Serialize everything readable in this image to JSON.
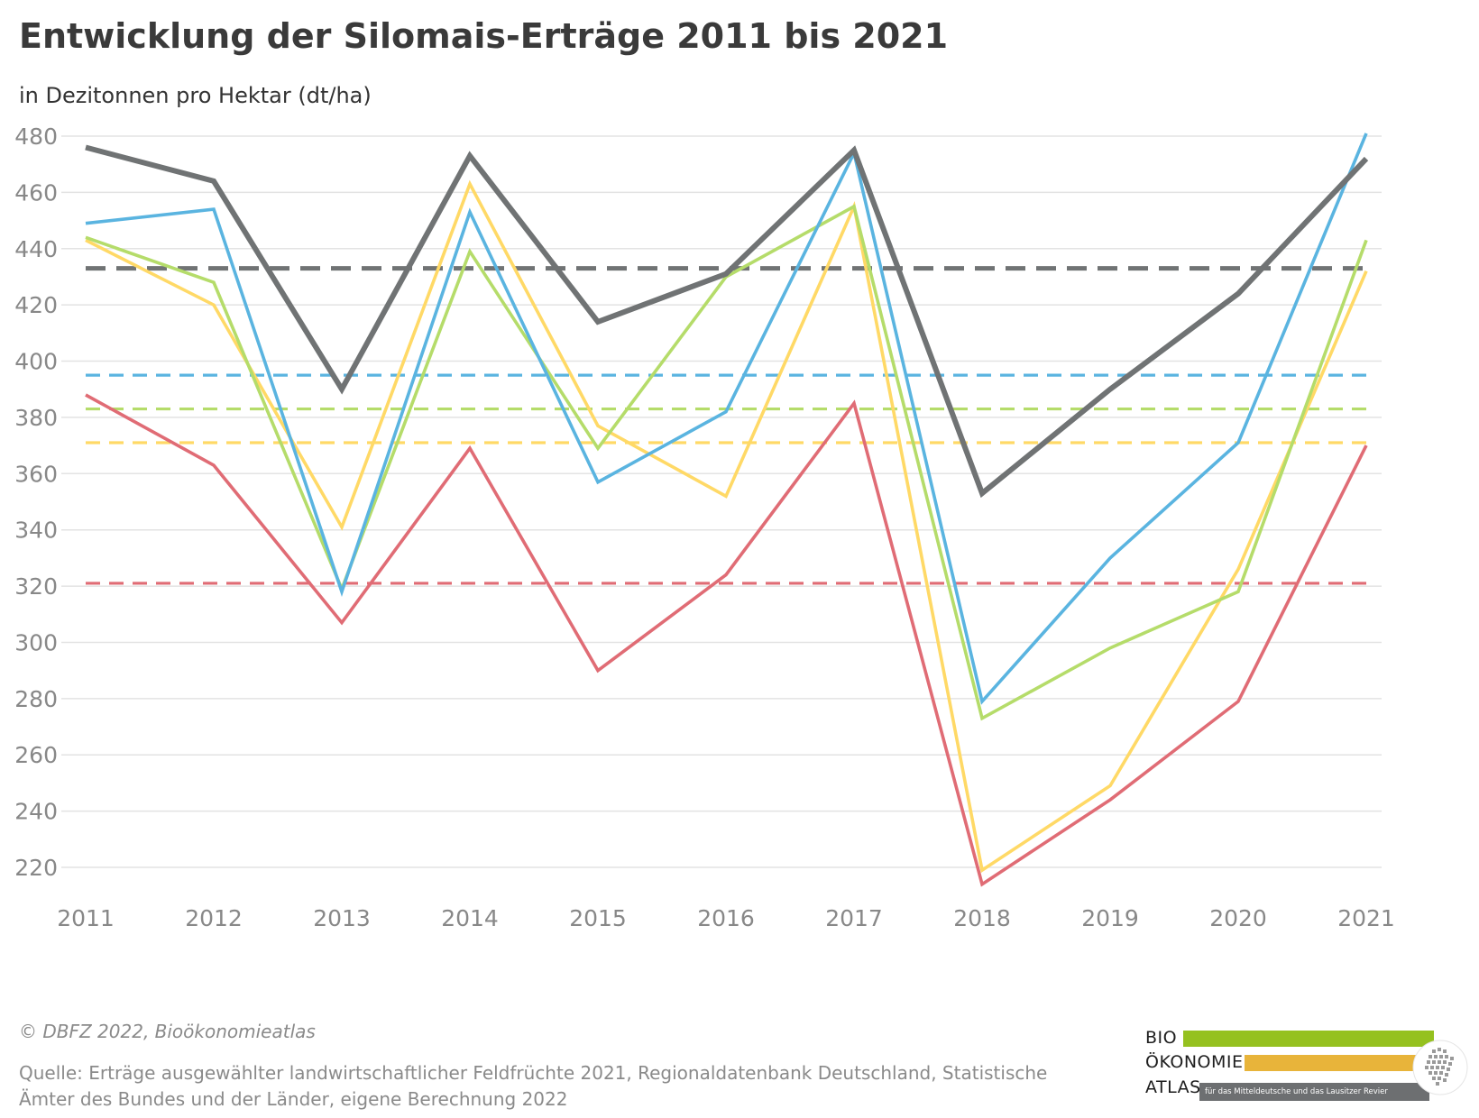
{
  "header": {
    "title": "Entwicklung der Silomais-Erträge 2011 bis 2021",
    "subtitle": "in Dezitonnen pro Hektar (dt/ha)"
  },
  "footer": {
    "copyright": "© DBFZ 2022, Bioökonomieatlas",
    "source": "Quelle: Erträge ausgewählter landwirtschaftlicher Feldfrüchte 2021, Regionaldatenbank Deutschland, Statistische Ämter des Bundes und der Länder, eigene Berechnung 2022"
  },
  "logo": {
    "line1": "BIO",
    "line2": "ÖKONOMIE",
    "line3": "ATLAS",
    "tagline": "für das Mitteldeutsche und das Lausitzer Revier",
    "colors": {
      "bio": "#95c11f",
      "oekonomie": "#e8b43a",
      "atlas": "#6d6f71"
    }
  },
  "chart_data": {
    "type": "line",
    "title": "Entwicklung der Silomais-Erträge 2011 bis 2021",
    "ylabel": "in Dezitonnen pro Hektar (dt/ha)",
    "x": [
      "2011",
      "2012",
      "2013",
      "2014",
      "2015",
      "2016",
      "2017",
      "2018",
      "2019",
      "2020",
      "2021"
    ],
    "ylim": [
      210,
      485
    ],
    "yticks": [
      220,
      240,
      260,
      280,
      300,
      320,
      340,
      360,
      380,
      400,
      420,
      440,
      460,
      480
    ],
    "grid": true,
    "legend": "none",
    "series": [
      {
        "color": "#e06c75",
        "values": [
          388,
          363,
          307,
          369,
          290,
          324,
          385,
          214,
          244,
          279,
          370
        ],
        "mean": 321
      },
      {
        "color": "#ffd966",
        "values": [
          443,
          420,
          341,
          463,
          377,
          352,
          455,
          219,
          249,
          326,
          432
        ],
        "mean": 371
      },
      {
        "color": "#b5dc6a",
        "values": [
          444,
          428,
          319,
          439,
          369,
          430,
          455,
          273,
          298,
          318,
          443
        ],
        "mean": 383
      },
      {
        "color": "#5ab4e0",
        "values": [
          449,
          454,
          318,
          453,
          357,
          382,
          474,
          279,
          330,
          371,
          481
        ],
        "mean": 395
      },
      {
        "color": "#707374",
        "values": [
          476,
          464,
          390,
          473,
          414,
          431,
          475,
          353,
          390,
          424,
          472
        ],
        "mean": 433
      }
    ]
  }
}
